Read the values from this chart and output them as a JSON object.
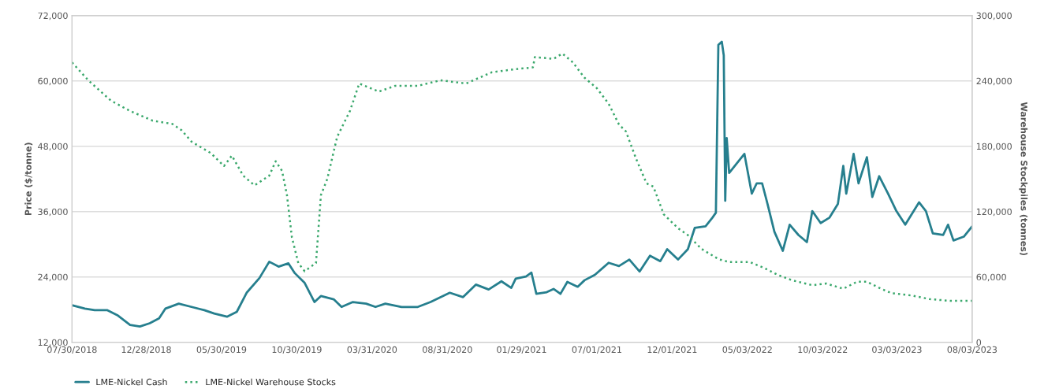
{
  "chart_data": {
    "type": "line",
    "ylabel": "Price ($/tonne)",
    "y2label": "Warehouse Stockpiles (tonnes)",
    "xlim": [
      "2018-07-30",
      "2023-08-03"
    ],
    "xticks": [
      {
        "value": "2018-07-30",
        "label": "07/30/2018"
      },
      {
        "value": "2018-12-28",
        "label": "12/28/2018"
      },
      {
        "value": "2019-05-30",
        "label": "05/30/2019"
      },
      {
        "value": "2019-10-30",
        "label": "10/30/2019"
      },
      {
        "value": "2020-03-31",
        "label": "03/31/2020"
      },
      {
        "value": "2020-08-31",
        "label": "08/31/2020"
      },
      {
        "value": "2021-01-29",
        "label": "01/29/2021"
      },
      {
        "value": "2021-07-01",
        "label": "07/01/2021"
      },
      {
        "value": "2021-12-01",
        "label": "12/01/2021"
      },
      {
        "value": "2022-05-03",
        "label": "05/03/2022"
      },
      {
        "value": "2022-10-03",
        "label": "10/03/2022"
      },
      {
        "value": "2023-03-03",
        "label": "03/03/2023"
      },
      {
        "value": "2023-08-03",
        "label": "08/03/2023"
      }
    ],
    "ylim": [
      12000,
      72000
    ],
    "yticks": [
      {
        "value": 12000,
        "label": "12,000"
      },
      {
        "value": 24000,
        "label": "24,000"
      },
      {
        "value": 36000,
        "label": "36,000"
      },
      {
        "value": 48000,
        "label": "48,000"
      },
      {
        "value": 60000,
        "label": "60,000"
      },
      {
        "value": 72000,
        "label": "72,000"
      }
    ],
    "y2lim": [
      0,
      300000
    ],
    "y2ticks": [
      0,
      {
        "value": 60000,
        "label": "60,000"
      },
      {
        "value": 120000,
        "label": "120,000"
      },
      {
        "value": 180000,
        "label": "180,000"
      },
      {
        "value": 240000,
        "label": "240,000"
      },
      {
        "value": 300000,
        "label": "300,000"
      }
    ],
    "grid": "y",
    "legend": "bottom left",
    "series": [
      {
        "name": "LME-Nickel Cash",
        "color": "#267f8e",
        "line_style": "solid",
        "x": [
          "2018-07-30",
          "2018-08-25",
          "2018-09-14",
          "2018-10-10",
          "2018-10-30",
          "2018-11-25",
          "2018-12-15",
          "2019-01-04",
          "2019-01-23",
          "2019-02-05",
          "2019-03-04",
          "2019-03-30",
          "2019-04-25",
          "2019-05-15",
          "2019-06-10",
          "2019-06-30",
          "2019-07-20",
          "2019-08-15",
          "2019-09-04",
          "2019-09-23",
          "2019-10-13",
          "2019-10-26",
          "2019-11-15",
          "2019-12-05",
          "2019-12-18",
          "2020-01-13",
          "2020-01-29",
          "2020-02-21",
          "2020-03-19",
          "2020-04-07",
          "2020-04-27",
          "2020-05-30",
          "2020-07-02",
          "2020-07-28",
          "2020-09-05",
          "2020-10-02",
          "2020-10-28",
          "2020-11-23",
          "2020-12-19",
          "2021-01-08",
          "2021-01-17",
          "2021-02-07",
          "2021-02-18",
          "2021-02-28",
          "2021-03-21",
          "2021-04-04",
          "2021-04-18",
          "2021-05-02",
          "2021-05-23",
          "2021-06-06",
          "2021-06-27",
          "2021-07-25",
          "2021-08-15",
          "2021-09-05",
          "2021-09-26",
          "2021-10-17",
          "2021-11-07",
          "2021-11-21",
          "2021-12-13",
          "2022-01-02",
          "2022-01-16",
          "2022-02-07",
          "2022-02-21",
          "2022-02-28",
          "2022-03-05",
          "2022-03-12",
          "2022-03-16",
          "2022-03-19",
          "2022-03-22",
          "2022-03-27",
          "2022-04-18",
          "2022-04-27",
          "2022-05-12",
          "2022-05-22",
          "2022-06-02",
          "2022-06-13",
          "2022-06-27",
          "2022-07-14",
          "2022-07-28",
          "2022-08-15",
          "2022-09-01",
          "2022-09-12",
          "2022-09-29",
          "2022-10-17",
          "2022-11-03",
          "2022-11-14",
          "2022-11-20",
          "2022-12-05",
          "2022-12-15",
          "2023-01-01",
          "2023-01-12",
          "2023-01-26",
          "2023-02-13",
          "2023-03-02",
          "2023-03-20",
          "2023-04-17",
          "2023-05-01",
          "2023-05-15",
          "2023-06-05",
          "2023-06-15",
          "2023-06-26",
          "2023-07-17",
          "2023-08-03"
        ],
        "values": [
          18800,
          18200,
          17900,
          17900,
          17000,
          15200,
          14900,
          15500,
          16400,
          18200,
          19100,
          18500,
          17900,
          17300,
          16700,
          17600,
          21100,
          23800,
          26800,
          25900,
          26500,
          24700,
          22900,
          19400,
          20500,
          19900,
          18500,
          19400,
          19100,
          18500,
          19100,
          18500,
          18500,
          19400,
          21100,
          20300,
          22600,
          21700,
          23200,
          22000,
          23700,
          24100,
          24800,
          20900,
          21200,
          21800,
          20900,
          23100,
          22200,
          23400,
          24400,
          26600,
          26000,
          27200,
          25000,
          27900,
          26900,
          29100,
          27200,
          29100,
          33000,
          33300,
          34900,
          35800,
          66600,
          67200,
          64700,
          38000,
          49500,
          43100,
          45600,
          46600,
          39300,
          41200,
          41200,
          37400,
          32300,
          28800,
          33600,
          31700,
          30400,
          36100,
          33900,
          34900,
          37400,
          44400,
          39300,
          46600,
          41200,
          46000,
          38700,
          42500,
          39300,
          36100,
          33600,
          37700,
          36100,
          32000,
          31700,
          33600,
          30700,
          31400,
          33300
        ]
      },
      {
        "name": "LME-Nickel Warehouse Stocks",
        "color": "#3aa86c",
        "line_style": "dotted",
        "axis": "y2",
        "x": [
          "2018-07-30",
          "2018-09-01",
          "2018-10-17",
          "2018-11-25",
          "2019-01-10",
          "2019-02-19",
          "2019-03-10",
          "2019-03-30",
          "2019-05-08",
          "2019-06-04",
          "2019-06-20",
          "2019-07-13",
          "2019-08-05",
          "2019-09-04",
          "2019-09-17",
          "2019-09-30",
          "2019-10-10",
          "2019-10-20",
          "2019-11-02",
          "2019-11-15",
          "2019-12-08",
          "2019-12-18",
          "2019-12-31",
          "2020-01-20",
          "2020-02-15",
          "2020-03-05",
          "2020-04-14",
          "2020-05-17",
          "2020-07-02",
          "2020-08-17",
          "2020-10-08",
          "2020-11-30",
          "2021-01-17",
          "2021-02-21",
          "2021-02-25",
          "2021-04-04",
          "2021-04-22",
          "2021-05-13",
          "2021-06-06",
          "2021-07-01",
          "2021-07-25",
          "2021-08-15",
          "2021-08-29",
          "2021-09-19",
          "2021-10-10",
          "2021-10-24",
          "2021-11-14",
          "2021-12-13",
          "2022-01-02",
          "2022-01-30",
          "2022-03-06",
          "2022-03-27",
          "2022-05-08",
          "2022-06-06",
          "2022-07-04",
          "2022-08-01",
          "2022-09-12",
          "2022-10-10",
          "2022-11-14",
          "2022-12-12",
          "2023-01-01",
          "2023-01-30",
          "2023-02-20",
          "2023-04-03",
          "2023-05-08",
          "2023-06-19",
          "2023-08-03"
        ],
        "values": [
          257000,
          240600,
          221900,
          212400,
          203500,
          200500,
          194600,
          184200,
          173800,
          161900,
          171400,
          153000,
          144100,
          153000,
          166300,
          157400,
          135100,
          96500,
          72800,
          65300,
          72800,
          135100,
          150000,
          188600,
          212400,
          237600,
          230200,
          235500,
          235500,
          240600,
          237600,
          248000,
          250800,
          252400,
          261900,
          260300,
          265100,
          257100,
          242900,
          233300,
          219000,
          200000,
          193700,
          168300,
          146000,
          142900,
          117500,
          104800,
          98400,
          85700,
          76200,
          73700,
          73700,
          68300,
          61900,
          57100,
          52400,
          54000,
          49200,
          55600,
          55600,
          49200,
          45100,
          42900,
          39700,
          38100,
          38100
        ]
      }
    ]
  }
}
